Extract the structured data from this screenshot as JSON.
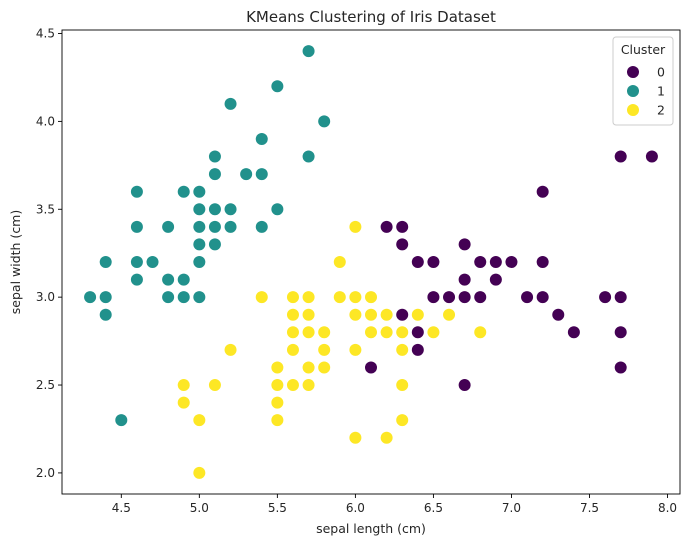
{
  "chart_data": {
    "type": "scatter",
    "title": "KMeans Clustering of Iris Dataset",
    "xlabel": "sepal length (cm)",
    "ylabel": "sepal width (cm)",
    "xlim": [
      4.12,
      8.08
    ],
    "ylim": [
      1.88,
      4.52
    ],
    "xticks": [
      4.5,
      5.0,
      5.5,
      6.0,
      6.5,
      7.0,
      7.5,
      8.0
    ],
    "xtick_labels": [
      "4.5",
      "5.0",
      "5.5",
      "6.0",
      "6.5",
      "7.0",
      "7.5",
      "8.0"
    ],
    "yticks": [
      2.0,
      2.5,
      3.0,
      3.5,
      4.0,
      4.5
    ],
    "ytick_labels": [
      "2.0",
      "2.5",
      "3.0",
      "3.5",
      "4.0",
      "4.5"
    ],
    "grid": false,
    "legend": {
      "title": "Cluster",
      "position": "top-right"
    },
    "series": [
      {
        "name": "0",
        "color": "#440154",
        "points": [
          [
            6.2,
            3.4
          ],
          [
            6.3,
            3.4
          ],
          [
            6.3,
            3.3
          ],
          [
            6.4,
            3.2
          ],
          [
            6.5,
            3.2
          ],
          [
            6.7,
            3.3
          ],
          [
            6.7,
            3.1
          ],
          [
            6.8,
            3.2
          ],
          [
            6.9,
            3.2
          ],
          [
            6.9,
            3.1
          ],
          [
            7.0,
            3.2
          ],
          [
            7.2,
            3.6
          ],
          [
            7.2,
            3.2
          ],
          [
            7.2,
            3.0
          ],
          [
            7.1,
            3.0
          ],
          [
            7.3,
            2.9
          ],
          [
            7.4,
            2.8
          ],
          [
            7.6,
            3.0
          ],
          [
            7.7,
            3.8
          ],
          [
            7.9,
            3.8
          ],
          [
            7.7,
            3.0
          ],
          [
            7.7,
            2.8
          ],
          [
            7.7,
            2.6
          ],
          [
            6.7,
            3.0
          ],
          [
            6.8,
            3.0
          ],
          [
            6.5,
            3.0
          ],
          [
            6.4,
            2.8
          ],
          [
            6.4,
            2.7
          ],
          [
            6.3,
            2.9
          ],
          [
            6.1,
            2.6
          ],
          [
            6.7,
            2.5
          ],
          [
            6.6,
            3.0
          ]
        ]
      },
      {
        "name": "1",
        "color": "#21918c",
        "points": [
          [
            5.7,
            4.4
          ],
          [
            5.5,
            4.2
          ],
          [
            5.2,
            4.1
          ],
          [
            5.8,
            4.0
          ],
          [
            5.4,
            3.9
          ],
          [
            5.1,
            3.8
          ],
          [
            5.7,
            3.8
          ],
          [
            5.1,
            3.7
          ],
          [
            5.3,
            3.7
          ],
          [
            5.4,
            3.7
          ],
          [
            4.6,
            3.6
          ],
          [
            4.9,
            3.6
          ],
          [
            5.0,
            3.6
          ],
          [
            5.0,
            3.5
          ],
          [
            5.1,
            3.5
          ],
          [
            5.2,
            3.5
          ],
          [
            5.5,
            3.5
          ],
          [
            4.6,
            3.4
          ],
          [
            4.8,
            3.4
          ],
          [
            5.0,
            3.4
          ],
          [
            5.1,
            3.4
          ],
          [
            5.2,
            3.4
          ],
          [
            5.4,
            3.4
          ],
          [
            5.0,
            3.3
          ],
          [
            5.1,
            3.3
          ],
          [
            4.4,
            3.2
          ],
          [
            4.6,
            3.2
          ],
          [
            4.7,
            3.2
          ],
          [
            5.0,
            3.2
          ],
          [
            4.6,
            3.1
          ],
          [
            4.8,
            3.1
          ],
          [
            4.9,
            3.1
          ],
          [
            4.3,
            3.0
          ],
          [
            4.4,
            3.0
          ],
          [
            4.8,
            3.0
          ],
          [
            4.9,
            3.0
          ],
          [
            5.0,
            3.0
          ],
          [
            4.4,
            2.9
          ],
          [
            4.5,
            2.3
          ]
        ]
      },
      {
        "name": "2",
        "color": "#fde725",
        "points": [
          [
            6.0,
            3.4
          ],
          [
            5.9,
            3.2
          ],
          [
            5.4,
            3.0
          ],
          [
            5.6,
            3.0
          ],
          [
            5.7,
            3.0
          ],
          [
            5.9,
            3.0
          ],
          [
            6.0,
            3.0
          ],
          [
            6.1,
            3.0
          ],
          [
            5.6,
            2.9
          ],
          [
            5.7,
            2.9
          ],
          [
            6.0,
            2.9
          ],
          [
            6.1,
            2.9
          ],
          [
            6.2,
            2.9
          ],
          [
            6.4,
            2.9
          ],
          [
            6.6,
            2.9
          ],
          [
            5.6,
            2.8
          ],
          [
            5.7,
            2.8
          ],
          [
            5.8,
            2.8
          ],
          [
            6.1,
            2.8
          ],
          [
            6.2,
            2.8
          ],
          [
            6.3,
            2.8
          ],
          [
            6.8,
            2.8
          ],
          [
            6.5,
            2.8
          ],
          [
            5.2,
            2.7
          ],
          [
            5.6,
            2.7
          ],
          [
            5.8,
            2.7
          ],
          [
            6.0,
            2.7
          ],
          [
            6.3,
            2.7
          ],
          [
            5.7,
            2.6
          ],
          [
            5.8,
            2.6
          ],
          [
            5.5,
            2.6
          ],
          [
            4.9,
            2.5
          ],
          [
            5.1,
            2.5
          ],
          [
            5.5,
            2.5
          ],
          [
            5.6,
            2.5
          ],
          [
            5.7,
            2.5
          ],
          [
            6.3,
            2.5
          ],
          [
            4.9,
            2.4
          ],
          [
            5.5,
            2.4
          ],
          [
            5.0,
            2.3
          ],
          [
            5.5,
            2.3
          ],
          [
            6.3,
            2.3
          ],
          [
            6.0,
            2.2
          ],
          [
            6.2,
            2.2
          ],
          [
            5.0,
            2.0
          ]
        ]
      }
    ]
  }
}
